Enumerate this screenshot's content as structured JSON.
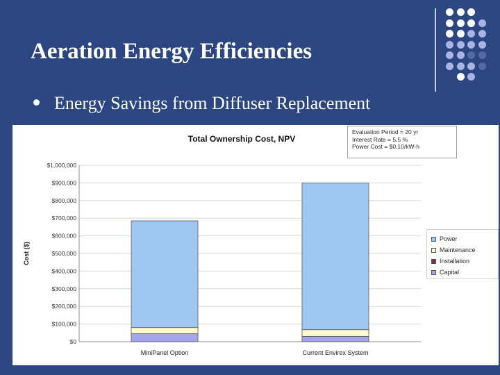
{
  "slide": {
    "title": "Aeration Energy Efficiencies",
    "bullet": "Energy Savings from Diffuser Replacement"
  },
  "params_box": {
    "lines": [
      "Evaluation Period = 20 yr",
      "Interest Rate = 5.5 %",
      "Power Cost = $0.10/kW-h"
    ]
  },
  "colors": {
    "background": "#2b4680",
    "Power": "#9fc7f2",
    "Maintenance": "#fffbcc",
    "Installation": "#7a2e4f",
    "Capital": "#a6a6ef",
    "dots_light": "#ffffff",
    "dots_mid": "#a9b4e3",
    "dots_dark": "#5569a8"
  },
  "chart_data": {
    "type": "bar",
    "stacked": true,
    "title": "Total Ownership Cost, NPV",
    "xlabel": "",
    "ylabel": "Cost ($)",
    "categories": [
      "MiniPanel Option",
      "Current Envirex System"
    ],
    "ylim": [
      0,
      1000000
    ],
    "yticks": [
      0,
      100000,
      200000,
      300000,
      400000,
      500000,
      600000,
      700000,
      800000,
      900000,
      1000000
    ],
    "ytick_labels": [
      "$0",
      "$100,000",
      "$200,000",
      "$300,000",
      "$400,000",
      "$500,000",
      "$600,000",
      "$700,000",
      "$800,000",
      "$900,000",
      "$1,000,000"
    ],
    "series": [
      {
        "name": "Capital",
        "values": [
          45000,
          30000
        ]
      },
      {
        "name": "Installation",
        "values": [
          0,
          0
        ]
      },
      {
        "name": "Maintenance",
        "values": [
          35000,
          38000
        ]
      },
      {
        "name": "Power",
        "values": [
          605000,
          832000
        ]
      }
    ],
    "legend": [
      "Power",
      "Maintenance",
      "Installation",
      "Capital"
    ],
    "legend_position": "right",
    "grid": true
  }
}
